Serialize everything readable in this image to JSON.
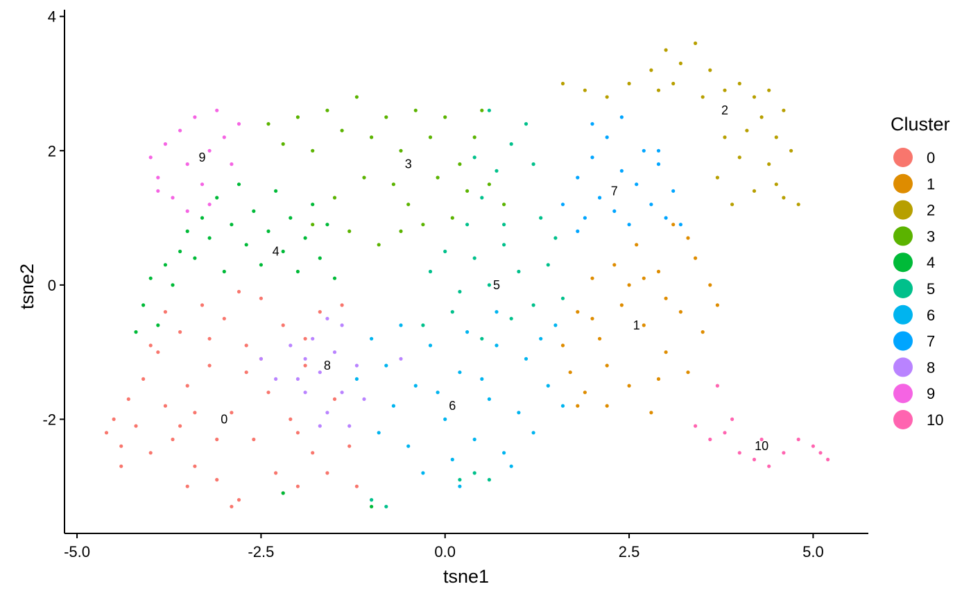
{
  "chart_data": {
    "type": "scatter",
    "xlabel": "tsne1",
    "ylabel": "tsne2",
    "xlim": [
      -5.17,
      5.75
    ],
    "ylim": [
      -3.7,
      4.1
    ],
    "x_ticks": [
      -5.0,
      -2.5,
      0.0,
      2.5,
      5.0
    ],
    "x_tick_labels": [
      "-5.0",
      "-2.5",
      "0.0",
      "2.5",
      "5.0"
    ],
    "y_ticks": [
      -2,
      0,
      2,
      4
    ],
    "y_tick_labels": [
      "-2",
      "0",
      "2",
      "4"
    ],
    "grid": false,
    "legend": {
      "title": "Cluster",
      "placement": "right"
    },
    "series": [
      {
        "name": "0",
        "color": "#F8766D",
        "center": [
          -3.0,
          -2.0
        ],
        "points": [
          [
            -4.6,
            -2.2
          ],
          [
            -4.5,
            -2.0
          ],
          [
            -4.4,
            -2.4
          ],
          [
            -4.3,
            -1.7
          ],
          [
            -4.2,
            -2.1
          ],
          [
            -4.1,
            -1.4
          ],
          [
            -4.0,
            -2.5
          ],
          [
            -3.9,
            -1.0
          ],
          [
            -3.8,
            -1.8
          ],
          [
            -3.7,
            -2.3
          ],
          [
            -3.6,
            -0.7
          ],
          [
            -3.5,
            -1.5
          ],
          [
            -3.4,
            -2.7
          ],
          [
            -3.3,
            -0.3
          ],
          [
            -3.2,
            -1.2
          ],
          [
            -3.1,
            -2.9
          ],
          [
            -3.0,
            -0.5
          ],
          [
            -2.9,
            -1.9
          ],
          [
            -2.8,
            -3.2
          ],
          [
            -2.7,
            -0.9
          ],
          [
            -2.6,
            -2.3
          ],
          [
            -2.5,
            -0.2
          ],
          [
            -2.4,
            -1.6
          ],
          [
            -2.3,
            -2.8
          ],
          [
            -2.2,
            -0.6
          ],
          [
            -2.1,
            -2.0
          ],
          [
            -2.0,
            -3.0
          ],
          [
            -1.9,
            -1.2
          ],
          [
            -1.8,
            -2.5
          ],
          [
            -1.7,
            -0.4
          ],
          [
            -1.6,
            -2.8
          ],
          [
            -1.5,
            -1.7
          ],
          [
            -1.4,
            -0.3
          ],
          [
            -1.3,
            -2.4
          ],
          [
            -1.2,
            -3.0
          ],
          [
            -3.8,
            -0.4
          ],
          [
            -4.0,
            -0.9
          ],
          [
            -3.5,
            -3.0
          ],
          [
            -2.9,
            -3.3
          ],
          [
            -2.2,
            -3.1
          ],
          [
            -3.1,
            -2.3
          ],
          [
            -2.7,
            -1.3
          ],
          [
            -3.4,
            -1.9
          ],
          [
            -4.4,
            -2.7
          ],
          [
            -2.5,
            -1.1
          ],
          [
            -1.9,
            -0.8
          ],
          [
            -2.0,
            -2.2
          ],
          [
            -3.6,
            -2.1
          ],
          [
            -2.8,
            -0.1
          ],
          [
            -3.2,
            -0.8
          ]
        ]
      },
      {
        "name": "1",
        "color": "#DE8C00",
        "center": [
          2.6,
          -0.6
        ],
        "points": [
          [
            1.6,
            -0.9
          ],
          [
            1.7,
            -1.3
          ],
          [
            1.8,
            -0.4
          ],
          [
            1.9,
            -1.6
          ],
          [
            2.0,
            0.1
          ],
          [
            2.1,
            -0.8
          ],
          [
            2.2,
            -1.2
          ],
          [
            2.3,
            0.3
          ],
          [
            2.4,
            -0.3
          ],
          [
            2.5,
            -1.5
          ],
          [
            2.6,
            0.6
          ],
          [
            2.7,
            -0.6
          ],
          [
            2.8,
            -1.9
          ],
          [
            2.9,
            0.2
          ],
          [
            3.0,
            -1.0
          ],
          [
            3.1,
            0.9
          ],
          [
            3.2,
            -0.4
          ],
          [
            3.3,
            -1.3
          ],
          [
            3.4,
            0.4
          ],
          [
            3.5,
            -0.7
          ],
          [
            3.6,
            0.0
          ],
          [
            3.7,
            -0.3
          ],
          [
            2.2,
            -1.8
          ],
          [
            2.5,
            0.0
          ],
          [
            1.8,
            -1.8
          ],
          [
            2.9,
            -1.4
          ],
          [
            3.3,
            0.7
          ],
          [
            2.0,
            -0.5
          ],
          [
            2.7,
            0.1
          ],
          [
            3.0,
            -0.2
          ]
        ]
      },
      {
        "name": "2",
        "color": "#B79F00",
        "center": [
          3.8,
          2.6
        ],
        "points": [
          [
            1.6,
            3.0
          ],
          [
            1.9,
            2.9
          ],
          [
            2.2,
            2.8
          ],
          [
            2.5,
            3.0
          ],
          [
            2.8,
            3.2
          ],
          [
            3.0,
            3.5
          ],
          [
            3.2,
            3.3
          ],
          [
            3.4,
            3.6
          ],
          [
            3.6,
            3.2
          ],
          [
            3.8,
            2.9
          ],
          [
            4.0,
            3.0
          ],
          [
            4.2,
            2.8
          ],
          [
            4.4,
            2.9
          ],
          [
            4.6,
            2.6
          ],
          [
            4.5,
            2.2
          ],
          [
            4.4,
            1.8
          ],
          [
            4.6,
            1.3
          ],
          [
            4.8,
            1.2
          ],
          [
            4.2,
            1.4
          ],
          [
            4.0,
            1.9
          ],
          [
            3.9,
            1.2
          ],
          [
            3.7,
            1.6
          ],
          [
            4.1,
            2.3
          ],
          [
            4.3,
            2.5
          ],
          [
            3.5,
            2.8
          ],
          [
            3.1,
            3.0
          ],
          [
            2.9,
            2.9
          ],
          [
            4.5,
            1.5
          ],
          [
            3.8,
            2.2
          ],
          [
            4.7,
            2.0
          ]
        ]
      },
      {
        "name": "3",
        "color": "#5BB300",
        "center": [
          -0.5,
          1.8
        ],
        "points": [
          [
            -2.4,
            2.4
          ],
          [
            -2.2,
            2.1
          ],
          [
            -2.0,
            2.5
          ],
          [
            -1.8,
            2.0
          ],
          [
            -1.6,
            2.6
          ],
          [
            -1.4,
            2.3
          ],
          [
            -1.2,
            2.8
          ],
          [
            -1.0,
            2.2
          ],
          [
            -0.8,
            2.5
          ],
          [
            -0.6,
            2.0
          ],
          [
            -0.4,
            2.6
          ],
          [
            -0.2,
            2.2
          ],
          [
            0.0,
            2.5
          ],
          [
            0.2,
            1.8
          ],
          [
            0.4,
            2.2
          ],
          [
            0.6,
            1.5
          ],
          [
            0.8,
            1.2
          ],
          [
            -0.5,
            1.2
          ],
          [
            -0.7,
            1.5
          ],
          [
            -0.3,
            0.9
          ],
          [
            0.1,
            1.0
          ],
          [
            -1.1,
            1.6
          ],
          [
            -1.5,
            1.3
          ],
          [
            -1.8,
            0.9
          ],
          [
            -1.3,
            0.8
          ],
          [
            -0.9,
            0.6
          ],
          [
            -0.6,
            0.8
          ],
          [
            0.3,
            1.4
          ],
          [
            -0.1,
            1.6
          ],
          [
            0.5,
            2.6
          ]
        ]
      },
      {
        "name": "4",
        "color": "#00BA38",
        "center": [
          -2.3,
          0.5
        ],
        "points": [
          [
            -4.1,
            -0.3
          ],
          [
            -4.0,
            0.1
          ],
          [
            -3.9,
            -0.6
          ],
          [
            -3.8,
            0.3
          ],
          [
            -3.7,
            0.0
          ],
          [
            -3.6,
            0.5
          ],
          [
            -3.5,
            0.8
          ],
          [
            -3.4,
            0.4
          ],
          [
            -3.3,
            1.0
          ],
          [
            -3.2,
            0.7
          ],
          [
            -3.1,
            1.3
          ],
          [
            -3.0,
            0.2
          ],
          [
            -2.9,
            0.9
          ],
          [
            -2.8,
            1.5
          ],
          [
            -2.7,
            0.6
          ],
          [
            -2.6,
            1.1
          ],
          [
            -2.5,
            0.3
          ],
          [
            -2.4,
            0.8
          ],
          [
            -2.3,
            1.4
          ],
          [
            -2.2,
            0.5
          ],
          [
            -2.1,
            1.0
          ],
          [
            -2.0,
            0.2
          ],
          [
            -1.9,
            0.7
          ],
          [
            -1.8,
            1.2
          ],
          [
            -1.7,
            0.4
          ],
          [
            -1.6,
            0.9
          ],
          [
            -1.5,
            0.1
          ],
          [
            -4.2,
            -0.7
          ],
          [
            -2.2,
            -3.1
          ],
          [
            -1.0,
            -3.3
          ]
        ]
      },
      {
        "name": "5",
        "color": "#00C08B",
        "center": [
          0.7,
          0.0
        ],
        "points": [
          [
            -0.2,
            0.2
          ],
          [
            0.0,
            0.5
          ],
          [
            0.2,
            -0.1
          ],
          [
            0.4,
            0.4
          ],
          [
            0.6,
            0.0
          ],
          [
            0.8,
            0.6
          ],
          [
            1.0,
            0.2
          ],
          [
            1.2,
            -0.3
          ],
          [
            1.4,
            0.3
          ],
          [
            1.6,
            -0.2
          ],
          [
            0.3,
            0.9
          ],
          [
            0.5,
            1.3
          ],
          [
            0.7,
            1.7
          ],
          [
            0.9,
            2.1
          ],
          [
            1.1,
            2.4
          ],
          [
            0.6,
            2.6
          ],
          [
            1.3,
            1.0
          ],
          [
            0.9,
            -0.5
          ],
          [
            0.5,
            -0.8
          ],
          [
            0.1,
            -0.4
          ],
          [
            -0.3,
            -0.6
          ],
          [
            1.5,
            0.7
          ],
          [
            0.2,
            -2.9
          ],
          [
            0.4,
            -2.8
          ],
          [
            0.6,
            -2.9
          ],
          [
            -1.0,
            -3.2
          ],
          [
            -0.8,
            -3.3
          ],
          [
            0.8,
            0.9
          ],
          [
            1.2,
            1.8
          ],
          [
            0.4,
            1.9
          ]
        ]
      },
      {
        "name": "6",
        "color": "#00B4EF",
        "center": [
          0.1,
          -1.8
        ],
        "points": [
          [
            -1.0,
            -0.8
          ],
          [
            -0.8,
            -1.2
          ],
          [
            -0.6,
            -0.6
          ],
          [
            -0.4,
            -1.5
          ],
          [
            -0.2,
            -0.9
          ],
          [
            0.0,
            -2.0
          ],
          [
            0.2,
            -1.3
          ],
          [
            0.4,
            -2.3
          ],
          [
            0.6,
            -1.7
          ],
          [
            0.8,
            -2.5
          ],
          [
            1.0,
            -1.9
          ],
          [
            1.2,
            -2.2
          ],
          [
            1.4,
            -1.5
          ],
          [
            1.6,
            -1.8
          ],
          [
            0.3,
            -0.7
          ],
          [
            0.7,
            -0.9
          ],
          [
            1.1,
            -1.1
          ],
          [
            -0.5,
            -2.4
          ],
          [
            -0.3,
            -2.8
          ],
          [
            0.1,
            -2.6
          ],
          [
            0.9,
            -2.7
          ],
          [
            -0.7,
            -1.8
          ],
          [
            1.3,
            -0.8
          ],
          [
            0.5,
            -1.4
          ],
          [
            -0.1,
            -1.6
          ],
          [
            -1.2,
            -1.4
          ],
          [
            -0.9,
            -2.2
          ],
          [
            0.7,
            -0.4
          ],
          [
            1.5,
            -0.6
          ],
          [
            0.2,
            -3.0
          ]
        ]
      },
      {
        "name": "7",
        "color": "#00A5FF",
        "center": [
          2.3,
          1.4
        ],
        "points": [
          [
            1.6,
            1.2
          ],
          [
            1.8,
            1.6
          ],
          [
            1.9,
            1.0
          ],
          [
            2.0,
            1.9
          ],
          [
            2.1,
            1.3
          ],
          [
            2.2,
            2.2
          ],
          [
            2.3,
            1.1
          ],
          [
            2.4,
            1.7
          ],
          [
            2.5,
            0.9
          ],
          [
            2.6,
            1.5
          ],
          [
            2.7,
            2.0
          ],
          [
            2.8,
            1.2
          ],
          [
            2.9,
            1.8
          ],
          [
            3.0,
            1.0
          ],
          [
            3.1,
            1.4
          ],
          [
            3.2,
            0.9
          ],
          [
            2.0,
            2.4
          ],
          [
            1.8,
            0.8
          ],
          [
            2.4,
            2.5
          ],
          [
            2.9,
            2.0
          ]
        ]
      },
      {
        "name": "8",
        "color": "#B983FF",
        "center": [
          -1.6,
          -1.2
        ],
        "points": [
          [
            -2.5,
            -1.1
          ],
          [
            -2.3,
            -1.4
          ],
          [
            -2.1,
            -0.9
          ],
          [
            -1.9,
            -1.6
          ],
          [
            -1.8,
            -0.8
          ],
          [
            -1.7,
            -1.3
          ],
          [
            -1.6,
            -1.9
          ],
          [
            -1.5,
            -1.0
          ],
          [
            -1.4,
            -1.6
          ],
          [
            -1.3,
            -2.1
          ],
          [
            -1.2,
            -1.2
          ],
          [
            -1.1,
            -1.7
          ],
          [
            -1.4,
            -0.6
          ],
          [
            -1.7,
            -2.1
          ],
          [
            -0.6,
            -1.1
          ],
          [
            -1.9,
            -1.1
          ],
          [
            -2.0,
            -1.4
          ],
          [
            -1.6,
            -0.5
          ]
        ]
      },
      {
        "name": "9",
        "color": "#F564E3",
        "center": [
          -3.3,
          1.9
        ],
        "points": [
          [
            -4.0,
            1.9
          ],
          [
            -3.9,
            1.6
          ],
          [
            -3.8,
            2.1
          ],
          [
            -3.7,
            1.3
          ],
          [
            -3.6,
            2.3
          ],
          [
            -3.5,
            1.8
          ],
          [
            -3.4,
            2.5
          ],
          [
            -3.3,
            1.5
          ],
          [
            -3.2,
            2.0
          ],
          [
            -3.1,
            2.6
          ],
          [
            -3.0,
            2.2
          ],
          [
            -2.9,
            1.8
          ],
          [
            -2.8,
            2.4
          ],
          [
            -3.5,
            1.1
          ],
          [
            -3.9,
            1.4
          ],
          [
            -3.2,
            1.2
          ]
        ]
      },
      {
        "name": "10",
        "color": "#FF64B0",
        "center": [
          4.3,
          -2.4
        ],
        "points": [
          [
            3.4,
            -2.1
          ],
          [
            3.6,
            -2.3
          ],
          [
            3.8,
            -2.2
          ],
          [
            4.0,
            -2.5
          ],
          [
            4.2,
            -2.6
          ],
          [
            4.3,
            -2.3
          ],
          [
            4.4,
            -2.7
          ],
          [
            4.6,
            -2.5
          ],
          [
            4.8,
            -2.3
          ],
          [
            5.0,
            -2.4
          ],
          [
            5.1,
            -2.5
          ],
          [
            5.2,
            -2.6
          ],
          [
            3.7,
            -1.5
          ],
          [
            3.9,
            -2.0
          ]
        ]
      }
    ]
  }
}
